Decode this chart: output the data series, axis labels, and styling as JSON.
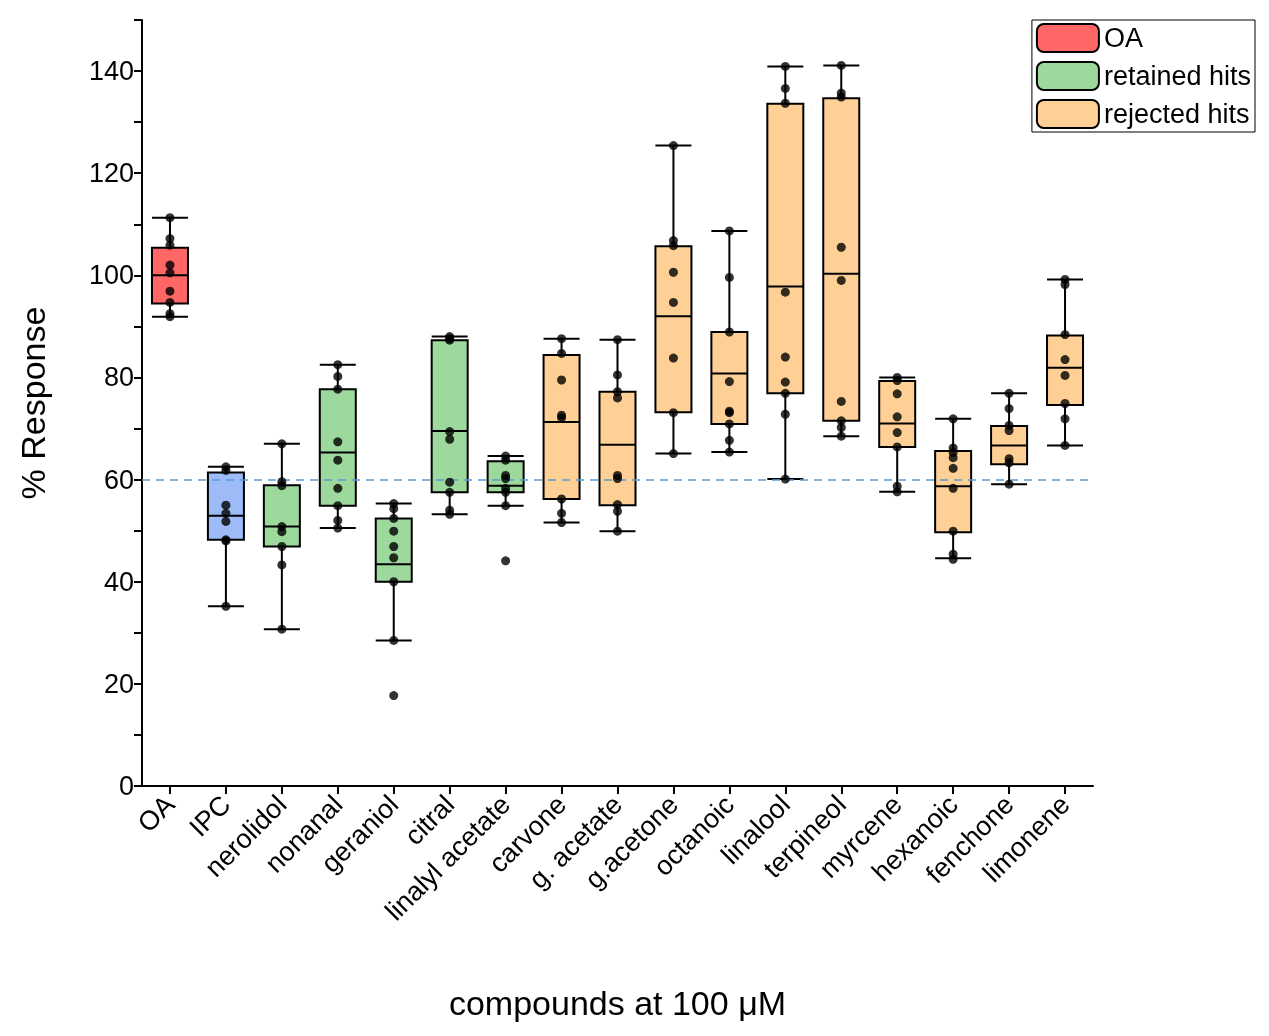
{
  "chart_data": {
    "type": "box",
    "xlabel": "compounds at 100 μM",
    "ylabel": "% Response",
    "categories": [
      "OA",
      "IPC",
      "nerolidol",
      "nonanal",
      "geraniol",
      "citral",
      "linalyl acetate",
      "carvone",
      "g. acetate",
      "g.acetone",
      "octanoic",
      "linalool",
      "terpineol",
      "myrcene",
      "hexanoic",
      "fenchone",
      "limonene"
    ],
    "ylim": [
      0,
      150
    ],
    "yticks": [
      0,
      {
        "value": 10,
        "label": null
      },
      20,
      {
        "value": 30,
        "label": null
      },
      40,
      {
        "value": 50,
        "label": null
      },
      60,
      {
        "value": 70,
        "label": null
      },
      80,
      {
        "value": 90,
        "label": null
      },
      100,
      {
        "value": 110,
        "label": null
      },
      120,
      {
        "value": 130,
        "label": null
      },
      140,
      {
        "value": 150,
        "label": null
      }
    ],
    "grid": false,
    "legend": "top right",
    "ref_lines": [
      {
        "axis": "y",
        "value": 60,
        "color": "#5b9bd5",
        "line_style": "dashed"
      }
    ],
    "series": [
      {
        "name": "OA",
        "color": "#ff6666",
        "boxes": [
          {
            "low": 91.9,
            "q1": 94.5,
            "median": 100,
            "q3": 105.4,
            "high": 111.3
          },
          null,
          null,
          null,
          null,
          null,
          null,
          null,
          null,
          null,
          null,
          null,
          null,
          null,
          null,
          null,
          null
        ]
      },
      {
        "color": "#9dbcf7",
        "boxes": [
          null,
          {
            "low": 35.2,
            "q1": 48.2,
            "median": 52.9,
            "q3": 61.4,
            "high": 62.5
          },
          null,
          null,
          null,
          null,
          null,
          null,
          null,
          null,
          null,
          null,
          null,
          null,
          null,
          null,
          null
        ]
      },
      {
        "name": "retained hits",
        "color": "#9dd89d",
        "boxes": [
          null,
          null,
          {
            "low": 30.7,
            "q1": 46.9,
            "median": 50.8,
            "q3": 58.9,
            "high": 67
          },
          {
            "low": 50.5,
            "q1": 54.9,
            "median": 65.3,
            "q3": 77.7,
            "high": 82.5
          },
          {
            "low": 28.5,
            "q1": 40,
            "median": 43.4,
            "q3": 52.4,
            "high": 55.3,
            "outliers": [
              17.7
            ]
          },
          {
            "low": 53.2,
            "q1": 57.5,
            "median": 69.5,
            "q3": 87.3,
            "high": 88
          },
          {
            "low": 54.9,
            "q1": 57.5,
            "median": 58.8,
            "q3": 63.6,
            "high": 64.6,
            "outliers": [
              44.1
            ]
          },
          null,
          null,
          null,
          null,
          null,
          null,
          null,
          null,
          null,
          null
        ]
      },
      {
        "name": "rejected hits",
        "color": "#ffd095",
        "boxes": [
          null,
          null,
          null,
          null,
          null,
          null,
          null,
          {
            "low": 51.6,
            "q1": 56.2,
            "median": 71.3,
            "q3": 84.4,
            "high": 87.6
          },
          {
            "low": 49.9,
            "q1": 55,
            "median": 66.8,
            "q3": 77.2,
            "high": 87.4
          },
          {
            "low": 65.1,
            "q1": 73.2,
            "median": 92,
            "q3": 105.7,
            "high": 125.4
          },
          {
            "low": 65.4,
            "q1": 70.9,
            "median": 80.8,
            "q3": 88.9,
            "high": 108.7
          },
          {
            "low": 60.1,
            "q1": 76.9,
            "median": 97.8,
            "q3": 133.6,
            "high": 140.9
          },
          {
            "low": 68.5,
            "q1": 71.5,
            "median": 100.3,
            "q3": 134.7,
            "high": 141.1
          },
          {
            "low": 57.6,
            "q1": 66.4,
            "median": 71,
            "q3": 79.3,
            "high": 80
          },
          {
            "low": 44.6,
            "q1": 49.7,
            "median": 58.7,
            "q3": 65.6,
            "high": 71.9
          },
          {
            "low": 59.1,
            "q1": 63,
            "median": 66.7,
            "q3": 70.5,
            "high": 76.9
          },
          {
            "low": 66.7,
            "q1": 74.6,
            "median": 81.9,
            "q3": 88.2,
            "high": 99.2
          }
        ]
      },
      {
        "type": "scatter",
        "color": "#000000",
        "x": [
          "OA",
          "OA",
          "OA",
          "OA",
          "OA",
          "OA",
          "OA",
          "OA",
          "OA",
          "IPC",
          "IPC",
          "IPC",
          "IPC",
          "IPC",
          "IPC",
          "IPC",
          "IPC",
          "nerolidol",
          "nerolidol",
          "nerolidol",
          "nerolidol",
          "nerolidol",
          "nerolidol",
          "nerolidol",
          "nerolidol",
          "nonanal",
          "nonanal",
          "nonanal",
          "nonanal",
          "nonanal",
          "nonanal",
          "nonanal",
          "nonanal",
          "nonanal",
          "geraniol",
          "geraniol",
          "geraniol",
          "geraniol",
          "geraniol",
          "geraniol",
          "geraniol",
          "geraniol",
          "citral",
          "citral",
          "citral",
          "citral",
          "citral",
          "citral",
          "citral",
          "citral",
          "citral",
          "linalyl acetate",
          "linalyl acetate",
          "linalyl acetate",
          "linalyl acetate",
          "linalyl acetate",
          "linalyl acetate",
          "linalyl acetate",
          "carvone",
          "carvone",
          "carvone",
          "carvone",
          "carvone",
          "carvone",
          "carvone",
          "carvone",
          "g. acetate",
          "g. acetate",
          "g. acetate",
          "g. acetate",
          "g. acetate",
          "g. acetate",
          "g. acetate",
          "g. acetate",
          "g. acetate",
          "g.acetone",
          "g.acetone",
          "g.acetone",
          "g.acetone",
          "g.acetone",
          "g.acetone",
          "g.acetone",
          "g.acetone",
          "octanoic",
          "octanoic",
          "octanoic",
          "octanoic",
          "octanoic",
          "octanoic",
          "octanoic",
          "octanoic",
          "octanoic",
          "linalool",
          "linalool",
          "linalool",
          "linalool",
          "linalool",
          "linalool",
          "linalool",
          "linalool",
          "linalool",
          "terpineol",
          "terpineol",
          "terpineol",
          "terpineol",
          "terpineol",
          "terpineol",
          "terpineol",
          "terpineol",
          "terpineol",
          "myrcene",
          "myrcene",
          "myrcene",
          "myrcene",
          "myrcene",
          "myrcene",
          "myrcene",
          "myrcene",
          "hexanoic",
          "hexanoic",
          "hexanoic",
          "hexanoic",
          "hexanoic",
          "hexanoic",
          "hexanoic",
          "hexanoic",
          "hexanoic",
          "fenchone",
          "fenchone",
          "fenchone",
          "fenchone",
          "fenchone",
          "fenchone",
          "fenchone",
          "limonene",
          "limonene",
          "limonene",
          "limonene",
          "limonene",
          "limonene",
          "limonene",
          "limonene"
        ],
        "values": [
          111.3,
          107.2,
          105.9,
          102,
          100.5,
          96.9,
          94.7,
          92.5,
          91.9,
          62.5,
          61.8,
          55,
          53.4,
          51.8,
          48.2,
          48,
          35.2,
          67,
          59.6,
          58.8,
          50.8,
          49.8,
          46.9,
          43.3,
          30.7,
          82.5,
          80.2,
          77.7,
          67.4,
          63.8,
          58.3,
          54.9,
          52,
          50.5,
          55.3,
          54.3,
          52.4,
          49.9,
          46.9,
          44.7,
          40,
          28.5,
          88,
          87.6,
          87.3,
          69.4,
          67.9,
          59.5,
          57.5,
          54,
          53.2,
          64.6,
          63.8,
          60.8,
          60.2,
          58.3,
          57.5,
          54.9,
          87.6,
          84.7,
          79.5,
          72.6,
          72.1,
          56.2,
          53.4,
          51.6,
          87.4,
          80.5,
          77.2,
          76,
          60.8,
          60.2,
          55.1,
          53.8,
          49.9,
          125.4,
          106.8,
          105.8,
          100.6,
          94.7,
          83.8,
          73.1,
          65.1,
          108.7,
          99.6,
          88.9,
          79.2,
          73.4,
          73.1,
          70.9,
          67.7,
          65.4,
          140.9,
          136.6,
          133.7,
          96.7,
          84,
          79.1,
          76.9,
          72.8,
          60.1,
          141.1,
          135.7,
          134.9,
          105.5,
          99,
          75.3,
          71.5,
          70.2,
          68.5,
          80,
          79.4,
          76.8,
          72.3,
          69.2,
          66.4,
          58.7,
          57.6,
          71.9,
          66.2,
          65.3,
          64.3,
          62.2,
          58.3,
          49.9,
          45.4,
          44.4,
          76.9,
          73.9,
          70.6,
          69.6,
          64.1,
          63.3,
          59.1,
          99.2,
          98.2,
          88.4,
          83.5,
          80.4,
          74.9,
          71.9,
          66.7
        ]
      }
    ]
  }
}
